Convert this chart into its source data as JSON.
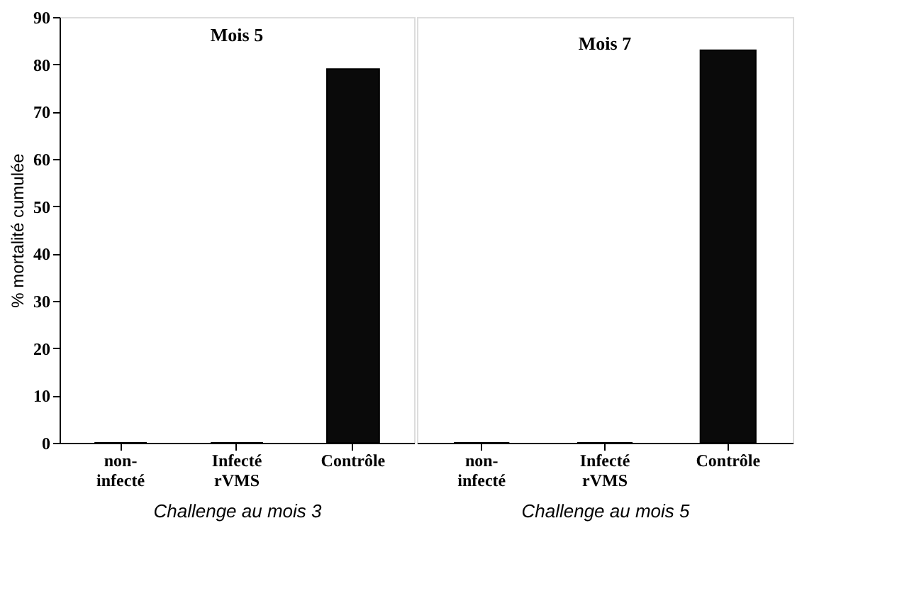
{
  "chart_data": [
    {
      "type": "bar",
      "title": "Mois 5",
      "categories": [
        "non-infecté",
        "Infecté rVMS",
        "Contrôle"
      ],
      "values": [
        0,
        0,
        79
      ],
      "color": "#0a0a0a",
      "ylim": [
        0,
        90
      ],
      "yticks": [
        0,
        10,
        20,
        30,
        40,
        50,
        60,
        70,
        80,
        90
      ],
      "ylabel": "% mortalité cumulée",
      "xlabel": "Challenge au mois 3",
      "grid": false
    },
    {
      "type": "bar",
      "title": "Mois 7",
      "categories": [
        "non-infecté",
        "Infecté rVMS",
        "Contrôle"
      ],
      "values": [
        0,
        0,
        83
      ],
      "color": "#0a0a0a",
      "ylim": [
        0,
        90
      ],
      "yticks": [
        0,
        10,
        20,
        30,
        40,
        50,
        60,
        70,
        80,
        90
      ],
      "xlabel": "Challenge au mois 5",
      "grid": false,
      "tick_labels": "x"
    }
  ]
}
